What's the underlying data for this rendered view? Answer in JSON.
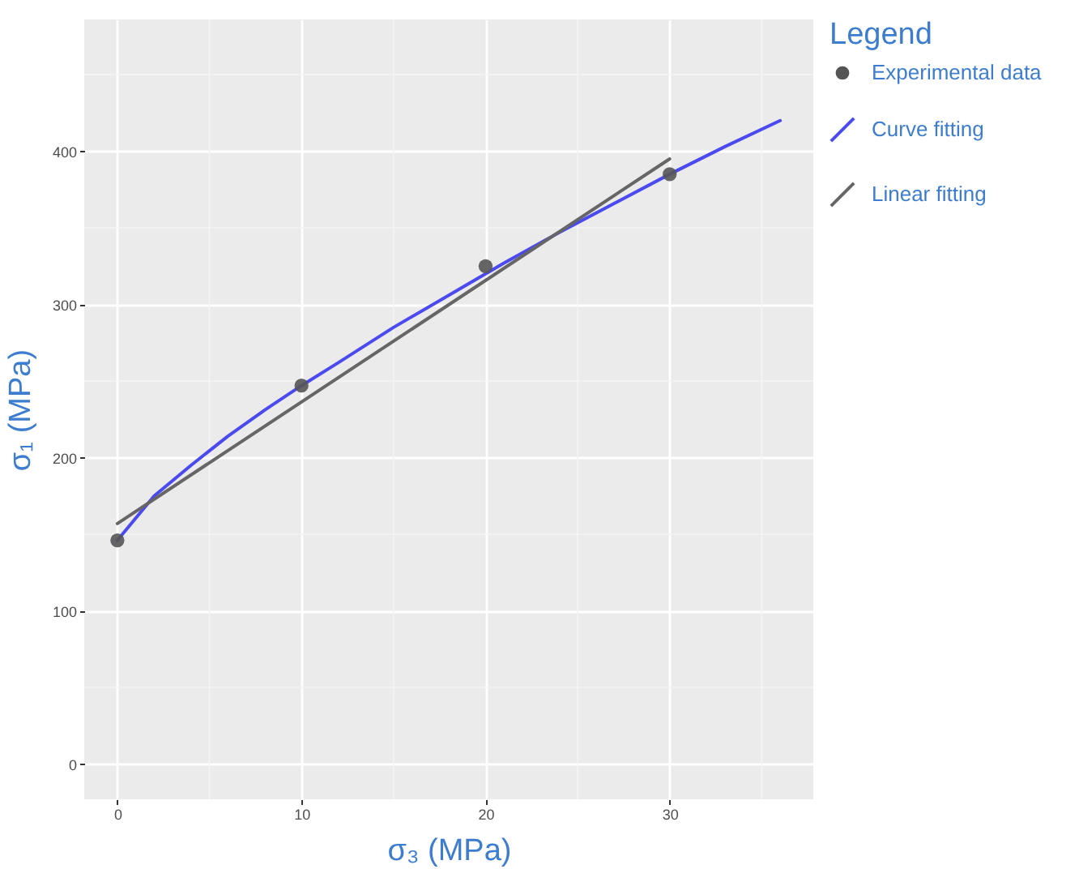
{
  "chart_data": {
    "type": "scatter",
    "xlabel": "σ₃ (MPa)",
    "ylabel": "σ₁ (MPa)",
    "legend_title": "Legend",
    "xlim": [
      -1.8,
      37.8
    ],
    "ylim": [
      -23,
      486
    ],
    "xticks": [
      0,
      10,
      20,
      30
    ],
    "yticks": [
      0,
      100,
      200,
      300,
      400
    ],
    "grid": true,
    "legend": "right",
    "series": [
      {
        "name": "Experimental data",
        "marker": "circle",
        "color": "#555555",
        "x": [
          0,
          10,
          20,
          30
        ],
        "values": [
          146,
          247,
          325,
          385
        ]
      },
      {
        "name": "Curve fitting",
        "type": "line",
        "color": "#4a4af0",
        "x": [
          0,
          2,
          4,
          6,
          8,
          10,
          12,
          15,
          18,
          21,
          24,
          27,
          30,
          33,
          36
        ],
        "values": [
          146,
          175,
          195,
          214,
          231,
          247,
          262,
          285,
          306,
          327,
          347,
          366,
          385,
          403,
          420
        ]
      },
      {
        "name": "Linear fitting",
        "type": "line",
        "color": "#666666",
        "x": [
          0,
          30
        ],
        "values": [
          157,
          395
        ]
      }
    ]
  }
}
